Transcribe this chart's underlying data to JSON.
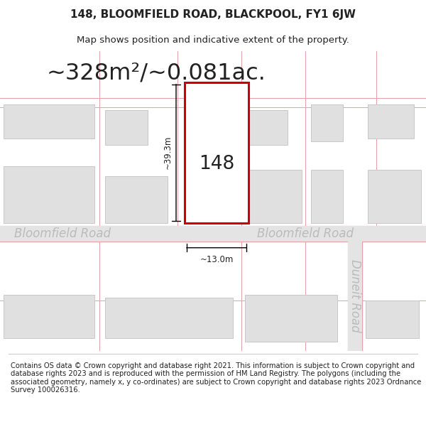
{
  "title": "148, BLOOMFIELD ROAD, BLACKPOOL, FY1 6JW",
  "subtitle": "Map shows position and indicative extent of the property.",
  "area_text": "~328m²/~0.081ac.",
  "label_148": "148",
  "dim_width": "~13.0m",
  "dim_height": "~39.3m",
  "road_label_left": "Bloomfield Road",
  "road_label_right": "Bloomfield Road",
  "road_label_vertical": "Duneit Road",
  "copyright_text": "Contains OS data © Crown copyright and database right 2021. This information is subject to Crown copyright and database rights 2023 and is reproduced with the permission of HM Land Registry. The polygons (including the associated geometry, namely x, y co-ordinates) are subject to Crown copyright and database rights 2023 Ordnance Survey 100026316.",
  "map_bg": "#efefef",
  "building_fill": "#e0e0e0",
  "building_edge": "#c8c8c8",
  "road_line_color": "#e8a0a0",
  "road_fill": "#e8e8e8",
  "highlight_fill": "#ffffff",
  "highlight_edge": "#cc0000",
  "text_color_dark": "#222222",
  "text_color_road": "#bbbbbb",
  "title_fontsize": 11,
  "subtitle_fontsize": 9.5,
  "area_fontsize": 23,
  "label_fontsize": 19,
  "dim_fontsize": 8.5,
  "road_fontsize": 12,
  "copyright_fontsize": 7.2
}
